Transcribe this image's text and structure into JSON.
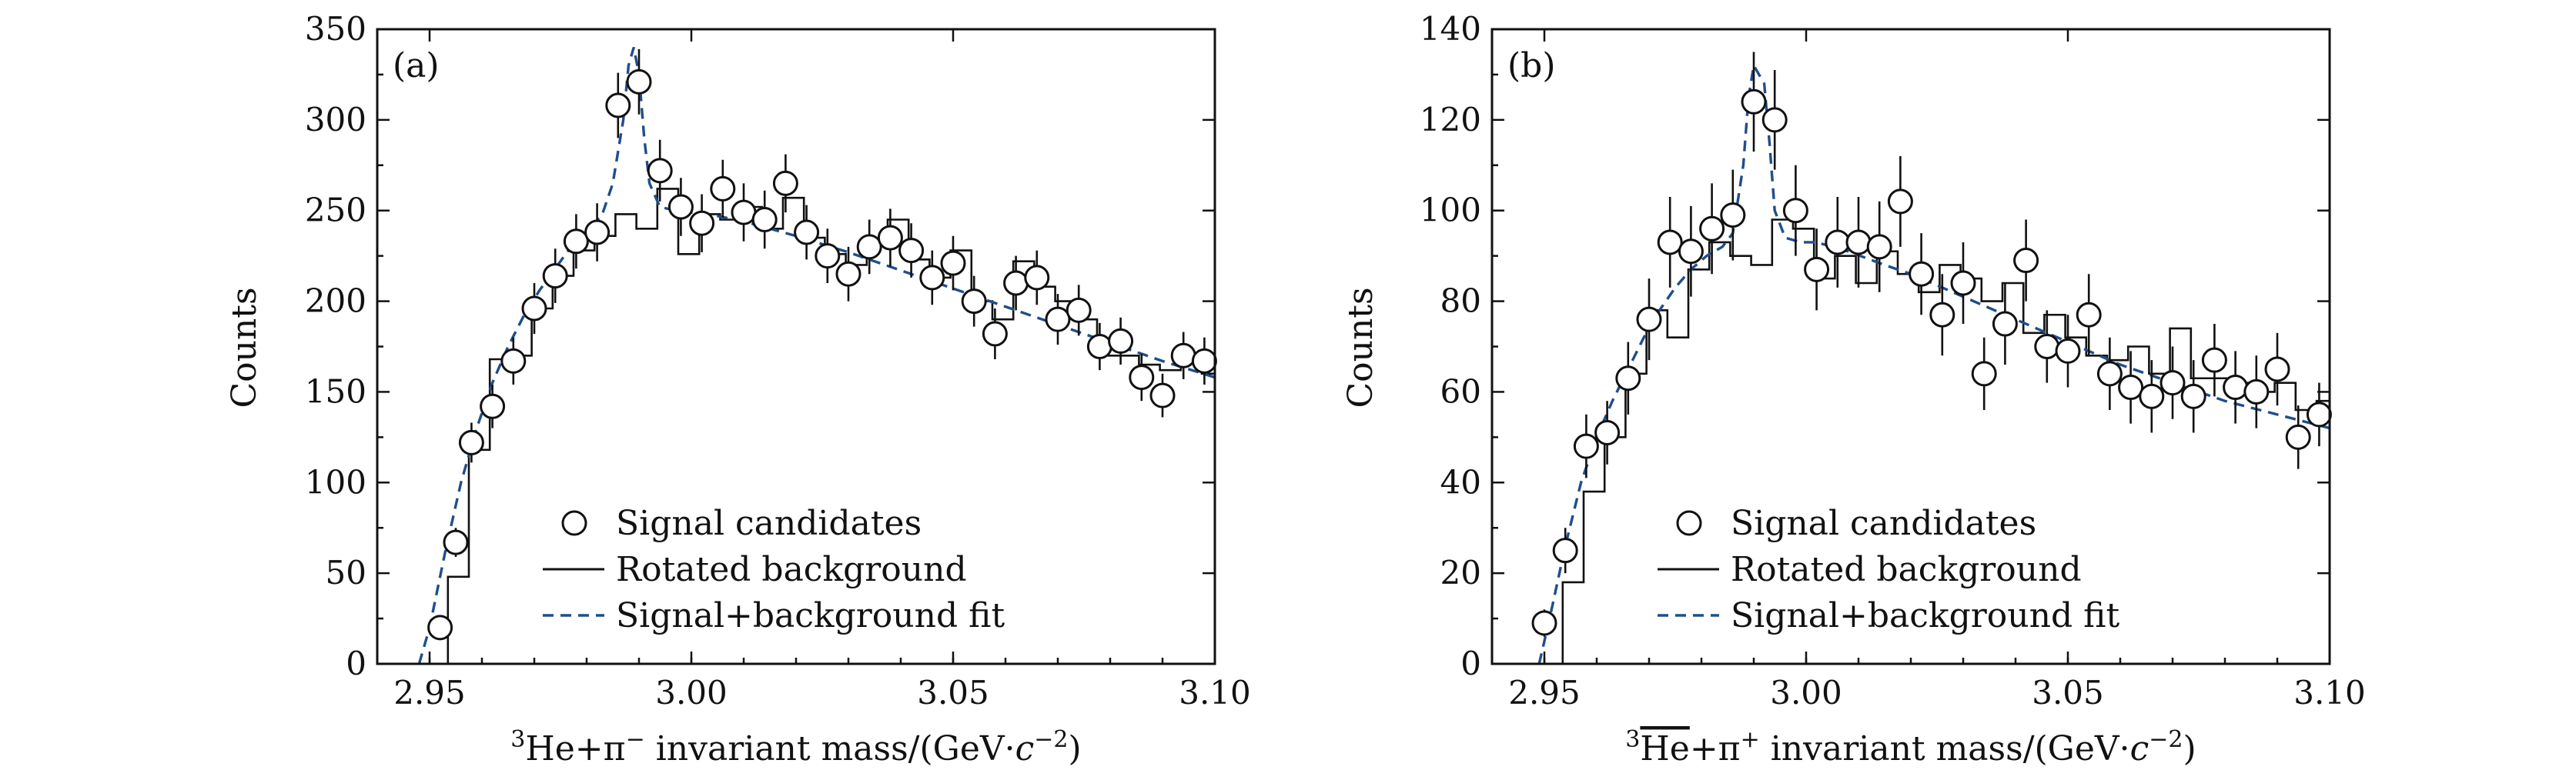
{
  "chart_data": [
    {
      "type": "scatter",
      "panel_label": "(a)",
      "xlabel": {
        "pre": "3",
        "main": "He+π",
        "sup": "−",
        "post": " invariant mass/(GeV·",
        "c": "c",
        "exp": "−2",
        "close": ")"
      },
      "ylabel": "Counts",
      "xlim": [
        2.94,
        3.1
      ],
      "ylim": [
        0,
        350
      ],
      "xticks": [
        2.95,
        3.0,
        3.05,
        3.1
      ],
      "xtick_labels": [
        "2.95",
        "3.00",
        "3.05",
        "3.10"
      ],
      "yticks": [
        0,
        50,
        100,
        150,
        200,
        250,
        300,
        350
      ],
      "ytick_labels": [
        "0",
        "50",
        "100",
        "150",
        "200",
        "250",
        "300",
        "350"
      ],
      "legend": {
        "position": "bottom-center",
        "entries": [
          "Signal candidates",
          "Rotated background",
          "Signal+background fit"
        ]
      },
      "signal_candidates": {
        "x": [
          2.952,
          2.955,
          2.958,
          2.962,
          2.966,
          2.97,
          2.974,
          2.978,
          2.982,
          2.986,
          2.99,
          2.994,
          2.998,
          3.002,
          3.006,
          3.01,
          3.014,
          3.018,
          3.022,
          3.026,
          3.03,
          3.034,
          3.038,
          3.042,
          3.046,
          3.05,
          3.054,
          3.058,
          3.062,
          3.066,
          3.07,
          3.074,
          3.078,
          3.082,
          3.086,
          3.09,
          3.094,
          3.098
        ],
        "y": [
          20,
          67,
          122,
          142,
          167,
          196,
          214,
          233,
          238,
          308,
          321,
          272,
          252,
          243,
          262,
          249,
          245,
          265,
          238,
          225,
          215,
          230,
          235,
          228,
          213,
          221,
          200,
          182,
          210,
          213,
          190,
          195,
          175,
          178,
          158,
          148,
          170,
          167
        ],
        "err": [
          6,
          8,
          11,
          12,
          13,
          14,
          15,
          15,
          16,
          18,
          18,
          17,
          16,
          16,
          16,
          16,
          16,
          16,
          15,
          15,
          15,
          15,
          16,
          15,
          15,
          15,
          14,
          14,
          15,
          15,
          14,
          14,
          13,
          13,
          13,
          12,
          13,
          13
        ]
      },
      "rotated_background": {
        "x": [
          2.9495,
          2.9535,
          2.9575,
          2.9615,
          2.9655,
          2.9695,
          2.9735,
          2.9775,
          2.9815,
          2.9855,
          2.9895,
          2.9935,
          2.9975,
          3.0015,
          3.0055,
          3.0095,
          3.0135,
          3.0175,
          3.0215,
          3.0255,
          3.0295,
          3.0335,
          3.0375,
          3.0415,
          3.0455,
          3.0495,
          3.0535,
          3.0575,
          3.0615,
          3.0655,
          3.0695,
          3.0735,
          3.0775,
          3.0815,
          3.0855,
          3.0895,
          3.0935,
          3.0975,
          3.1
        ],
        "y": [
          0,
          48,
          118,
          168,
          170,
          196,
          214,
          228,
          236,
          248,
          240,
          262,
          226,
          248,
          245,
          252,
          240,
          257,
          235,
          226,
          220,
          233,
          245,
          223,
          213,
          228,
          200,
          190,
          222,
          208,
          200,
          190,
          170,
          170,
          165,
          162,
          170,
          160,
          160
        ]
      },
      "fit": {
        "x": [
          2.948,
          2.95,
          2.953,
          2.956,
          2.959,
          2.962,
          2.965,
          2.968,
          2.971,
          2.974,
          2.977,
          2.98,
          2.983,
          2.985,
          2.987,
          2.988,
          2.989,
          2.99,
          2.991,
          2.992,
          2.994,
          2.997,
          3.0,
          3.005,
          3.01,
          3.015,
          3.02,
          3.03,
          3.04,
          3.05,
          3.06,
          3.07,
          3.08,
          3.09,
          3.1
        ],
        "y": [
          0,
          20,
          62,
          100,
          130,
          155,
          175,
          192,
          206,
          218,
          230,
          238,
          248,
          265,
          300,
          330,
          340,
          325,
          290,
          265,
          252,
          250,
          249,
          247,
          244,
          240,
          236,
          227,
          217,
          207,
          197,
          187,
          177,
          167,
          158
        ]
      }
    },
    {
      "type": "scatter",
      "panel_label": "(b)",
      "xlabel": {
        "pre": "3",
        "main": "He",
        "bar": true,
        "plus": "+π",
        "sup": "+",
        "post": " invariant mass/(GeV·",
        "c": "c",
        "exp": "−2",
        "close": ")"
      },
      "ylabel": "Counts",
      "xlim": [
        2.94,
        3.1
      ],
      "ylim": [
        0,
        140
      ],
      "xticks": [
        2.95,
        3.0,
        3.05,
        3.1
      ],
      "xtick_labels": [
        "2.95",
        "3.00",
        "3.05",
        "3.10"
      ],
      "yticks": [
        0,
        20,
        40,
        60,
        80,
        100,
        120,
        140
      ],
      "ytick_labels": [
        "0",
        "20",
        "40",
        "60",
        "80",
        "100",
        "120",
        "140"
      ],
      "legend": {
        "position": "bottom-center",
        "entries": [
          "Signal candidates",
          "Rotated background",
          "Signal+background fit"
        ]
      },
      "signal_candidates": {
        "x": [
          2.95,
          2.954,
          2.958,
          2.962,
          2.966,
          2.97,
          2.974,
          2.978,
          2.982,
          2.986,
          2.99,
          2.994,
          2.998,
          3.002,
          3.006,
          3.01,
          3.014,
          3.018,
          3.022,
          3.026,
          3.03,
          3.034,
          3.038,
          3.042,
          3.046,
          3.05,
          3.054,
          3.058,
          3.062,
          3.066,
          3.07,
          3.074,
          3.078,
          3.082,
          3.086,
          3.09,
          3.094,
          3.098
        ],
        "y": [
          9,
          25,
          48,
          51,
          63,
          76,
          93,
          91,
          96,
          99,
          124,
          120,
          100,
          87,
          93,
          93,
          92,
          102,
          86,
          77,
          84,
          64,
          75,
          89,
          70,
          69,
          77,
          64,
          61,
          59,
          62,
          59,
          67,
          61,
          60,
          65,
          50,
          55
        ],
        "err": [
          3,
          5,
          7,
          7,
          8,
          9,
          10,
          10,
          10,
          10,
          11,
          11,
          10,
          9,
          10,
          10,
          10,
          10,
          9,
          9,
          9,
          8,
          9,
          9,
          8,
          8,
          9,
          8,
          8,
          8,
          8,
          8,
          8,
          8,
          8,
          8,
          7,
          7
        ]
      },
      "rotated_background": {
        "x": [
          2.9495,
          2.9535,
          2.9575,
          2.9615,
          2.9655,
          2.9695,
          2.9735,
          2.9775,
          2.9815,
          2.9855,
          2.9895,
          2.9935,
          2.9975,
          3.0015,
          3.0055,
          3.0095,
          3.0135,
          3.0175,
          3.0215,
          3.0255,
          3.0295,
          3.0335,
          3.0375,
          3.0415,
          3.0455,
          3.0495,
          3.0535,
          3.0575,
          3.0615,
          3.0655,
          3.0695,
          3.0735,
          3.0775,
          3.0815,
          3.0855,
          3.0895,
          3.0935,
          3.0975,
          3.1
        ],
        "y": [
          0,
          18,
          38,
          50,
          64,
          78,
          72,
          87,
          93,
          90,
          88,
          98,
          96,
          85,
          90,
          84,
          91,
          86,
          82,
          88,
          85,
          80,
          84,
          73,
          77,
          72,
          68,
          67,
          70,
          64,
          74,
          63,
          63,
          62,
          60,
          62,
          56,
          58,
          58
        ]
      },
      "fit": {
        "x": [
          2.949,
          2.951,
          2.954,
          2.957,
          2.96,
          2.963,
          2.966,
          2.969,
          2.972,
          2.975,
          2.978,
          2.981,
          2.984,
          2.986,
          2.988,
          2.989,
          2.99,
          2.991,
          2.992,
          2.993,
          2.994,
          2.996,
          2.999,
          3.002,
          3.008,
          3.015,
          3.02,
          3.03,
          3.04,
          3.05,
          3.06,
          3.07,
          3.08,
          3.09,
          3.1
        ],
        "y": [
          0,
          10,
          26,
          40,
          50,
          58,
          65,
          72,
          78,
          83,
          87,
          90,
          92,
          95,
          110,
          125,
          132,
          130,
          128,
          115,
          100,
          94,
          93,
          93,
          91,
          88,
          86,
          81,
          76,
          71,
          66,
          62,
          58,
          55,
          52
        ]
      }
    }
  ]
}
